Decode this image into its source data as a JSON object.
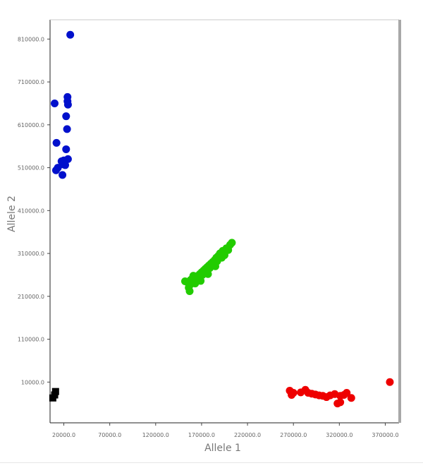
{
  "chart_data": {
    "type": "scatter",
    "title": "",
    "xlabel": "Allele 1",
    "ylabel": "Allele 2",
    "xlim": [
      5000,
      385000
    ],
    "ylim": [
      -85000,
      855000
    ],
    "x_ticks": [
      {
        "value": 20000,
        "label": "20000.0"
      },
      {
        "value": 70000,
        "label": "70000.0"
      },
      {
        "value": 120000,
        "label": "120000.0"
      },
      {
        "value": 170000,
        "label": "170000.0"
      },
      {
        "value": 220000,
        "label": "220000.0"
      },
      {
        "value": 270000,
        "label": "270000.0"
      },
      {
        "value": 320000,
        "label": "320000.0"
      },
      {
        "value": 370000,
        "label": "370000.0"
      }
    ],
    "y_ticks": [
      {
        "value": 10000,
        "label": "10000.0"
      },
      {
        "value": 110000,
        "label": "110000.0"
      },
      {
        "value": 210000,
        "label": "210000.0"
      },
      {
        "value": 310000,
        "label": "310000.0"
      },
      {
        "value": 410000,
        "label": "410000.0"
      },
      {
        "value": 510000,
        "label": "510000.0"
      },
      {
        "value": 610000,
        "label": "610000.0"
      },
      {
        "value": 710000,
        "label": "710000.0"
      },
      {
        "value": 810000,
        "label": "810000.0"
      }
    ],
    "grid": false,
    "legend": "none",
    "series": [
      {
        "color": "#0010cc",
        "marker": "circle",
        "points": [
          [
            27000,
            820000
          ],
          [
            10000,
            660000
          ],
          [
            24000,
            675000
          ],
          [
            24000,
            665000
          ],
          [
            24500,
            657000
          ],
          [
            22500,
            630000
          ],
          [
            23500,
            600000
          ],
          [
            12000,
            568000
          ],
          [
            22500,
            553000
          ],
          [
            24500,
            530000
          ],
          [
            20000,
            527000
          ],
          [
            17500,
            525000
          ],
          [
            19000,
            518000
          ],
          [
            21500,
            516000
          ],
          [
            13500,
            510000
          ],
          [
            11500,
            504000
          ],
          [
            18500,
            493000
          ]
        ]
      },
      {
        "color": "#22cc00",
        "marker": "circle",
        "points": [
          [
            152000,
            245000
          ],
          [
            155000,
            242000
          ],
          [
            158000,
            248000
          ],
          [
            160000,
            252000
          ],
          [
            162000,
            247000
          ],
          [
            164000,
            255000
          ],
          [
            166000,
            258000
          ],
          [
            168000,
            262000
          ],
          [
            170000,
            266000
          ],
          [
            172000,
            270000
          ],
          [
            174000,
            274000
          ],
          [
            176000,
            278000
          ],
          [
            178000,
            282000
          ],
          [
            180000,
            286000
          ],
          [
            182000,
            290000
          ],
          [
            184000,
            294000
          ],
          [
            186000,
            300000
          ],
          [
            188000,
            304000
          ],
          [
            190000,
            310000
          ],
          [
            193000,
            316000
          ],
          [
            197000,
            322000
          ],
          [
            201000,
            330000
          ],
          [
            203000,
            335000
          ],
          [
            158000,
            238000
          ],
          [
            161000,
            258000
          ],
          [
            167000,
            252000
          ],
          [
            171000,
            260000
          ],
          [
            175000,
            268000
          ],
          [
            179000,
            276000
          ],
          [
            183000,
            284000
          ],
          [
            187000,
            292000
          ],
          [
            192000,
            300000
          ],
          [
            195000,
            306000
          ],
          [
            199000,
            318000
          ],
          [
            156000,
            230000
          ],
          [
            157000,
            222000
          ],
          [
            163000,
            240000
          ],
          [
            169000,
            246000
          ],
          [
            177000,
            262000
          ],
          [
            185000,
            280000
          ]
        ]
      },
      {
        "color": "#ee0000",
        "marker": "circle",
        "points": [
          [
            266000,
            -10000
          ],
          [
            268000,
            -20000
          ],
          [
            270000,
            -15000
          ],
          [
            278000,
            -14000
          ],
          [
            283000,
            -8000
          ],
          [
            286000,
            -15000
          ],
          [
            290000,
            -17000
          ],
          [
            294000,
            -19000
          ],
          [
            298000,
            -21000
          ],
          [
            302000,
            -22000
          ],
          [
            306000,
            -25000
          ],
          [
            310000,
            -21000
          ],
          [
            315000,
            -18000
          ],
          [
            321000,
            -22000
          ],
          [
            325000,
            -20000
          ],
          [
            328000,
            -15000
          ],
          [
            333000,
            -27000
          ],
          [
            318000,
            -40000
          ],
          [
            321000,
            -37000
          ],
          [
            375000,
            10000
          ]
        ]
      },
      {
        "color": "#000000",
        "marker": "square",
        "points": [
          [
            11000,
            -12000
          ],
          [
            8000,
            -27000
          ],
          [
            10000,
            -20000
          ]
        ]
      }
    ]
  }
}
